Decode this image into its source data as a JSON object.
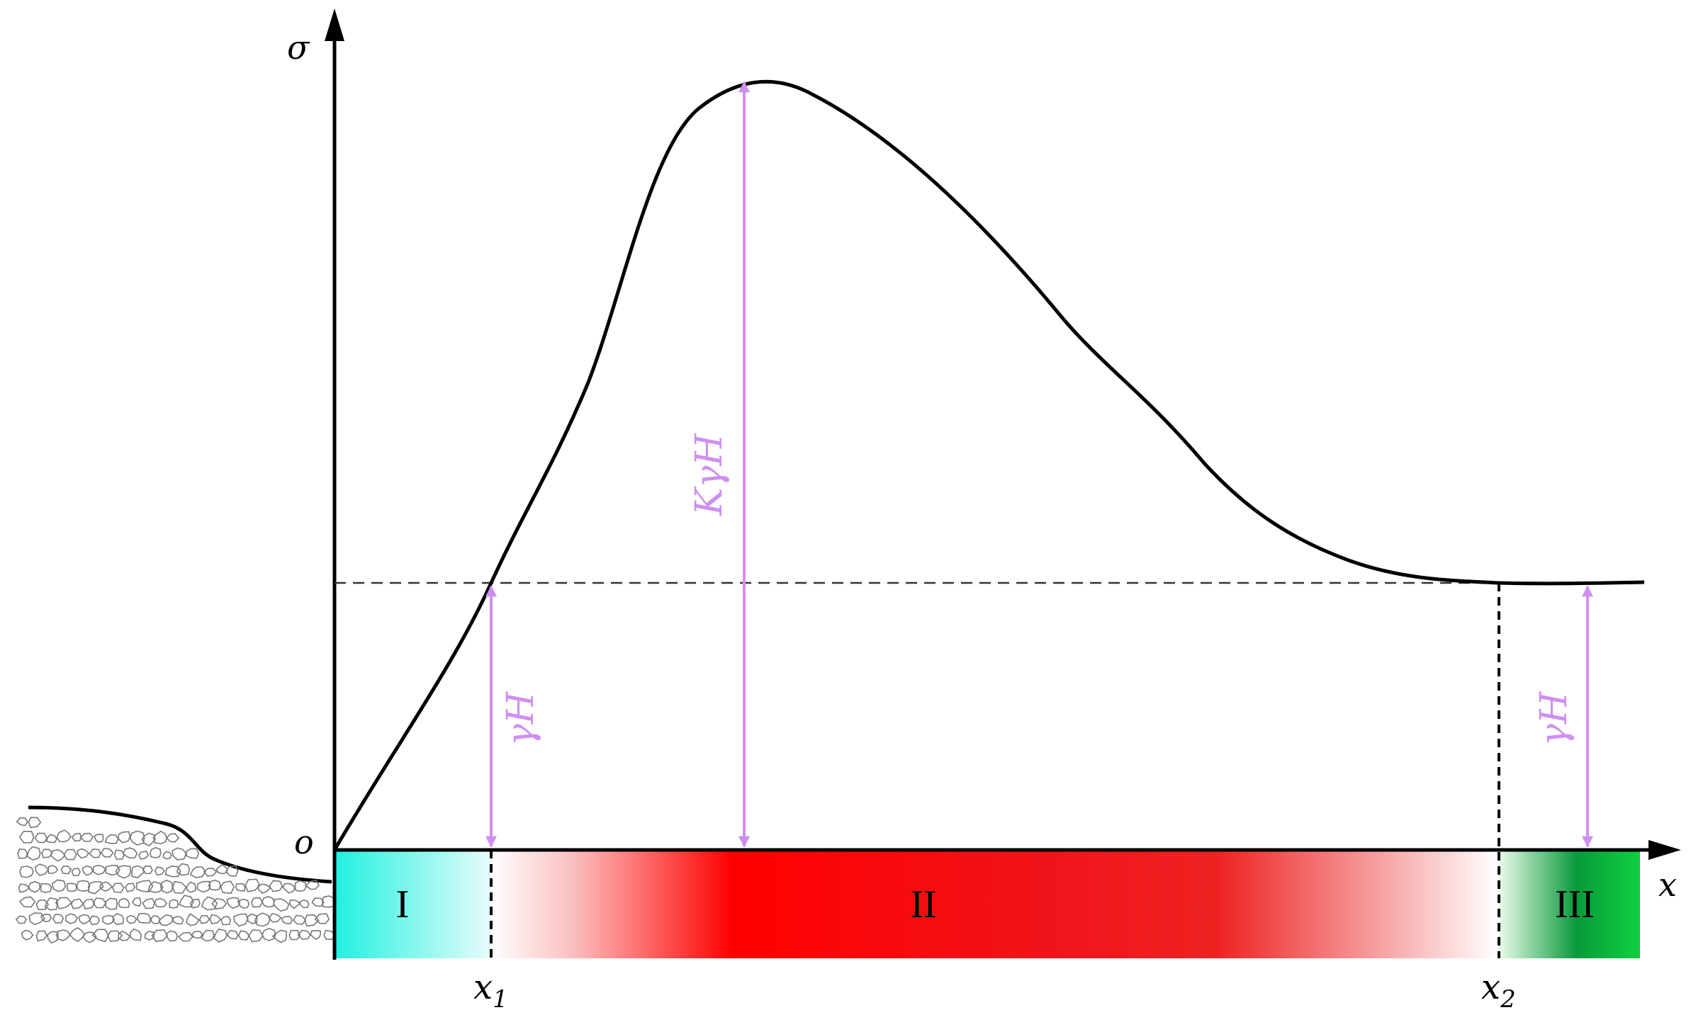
{
  "axes": {
    "y_label": "σ",
    "x_label": "x",
    "origin_label": "o"
  },
  "markers": {
    "x1_base": "x",
    "x1_sub": "1",
    "x2_base": "x",
    "x2_sub": "2"
  },
  "dimensions": {
    "left_label": "γH",
    "peak_label": "KγH",
    "right_label": "γH"
  },
  "zones": [
    {
      "label": "I"
    },
    {
      "label": "II"
    },
    {
      "label": "III"
    }
  ],
  "colors": {
    "curve": "#000000",
    "arrow": "#cf8ff0",
    "zone_I": "#22f0e0",
    "zone_II": "#ff0000",
    "zone_III": "#0fc83c",
    "dashed": "#333333",
    "rubble": "#777777"
  }
}
